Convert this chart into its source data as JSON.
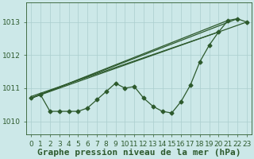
{
  "xlabel": "Graphe pression niveau de la mer (hPa)",
  "background_color": "#cce8e8",
  "grid_color": "#aacece",
  "line_color": "#2d5a2d",
  "xlim": [
    -0.5,
    23.5
  ],
  "ylim": [
    1009.6,
    1013.6
  ],
  "yticks": [
    1010,
    1011,
    1012,
    1013
  ],
  "xticks": [
    0,
    1,
    2,
    3,
    4,
    5,
    6,
    7,
    8,
    9,
    10,
    11,
    12,
    13,
    14,
    15,
    16,
    17,
    18,
    19,
    20,
    21,
    22,
    23
  ],
  "main_series": [
    1010.7,
    1010.8,
    1010.3,
    1010.3,
    1010.3,
    1010.3,
    1010.4,
    1010.65,
    1010.9,
    1011.15,
    1011.0,
    1011.05,
    1010.7,
    1010.45,
    1010.3,
    1010.25,
    1010.6,
    1011.1,
    1011.8,
    1012.3,
    1012.7,
    1013.05,
    1013.1,
    1013.0
  ],
  "straight_lines": [
    [
      [
        0,
        22
      ],
      [
        1010.7,
        1013.1
      ]
    ],
    [
      [
        0,
        21
      ],
      [
        1010.7,
        1013.05
      ]
    ],
    [
      [
        0,
        23
      ],
      [
        1010.7,
        1013.0
      ]
    ],
    [
      [
        0,
        20
      ],
      [
        1010.75,
        1012.7
      ]
    ]
  ],
  "marker": "D",
  "markersize": 2.5,
  "linewidth": 0.9,
  "xlabel_fontsize": 8,
  "xlabel_fontweight": "bold",
  "tick_fontsize": 6.5,
  "fig_width": 3.2,
  "fig_height": 2.0,
  "dpi": 100
}
